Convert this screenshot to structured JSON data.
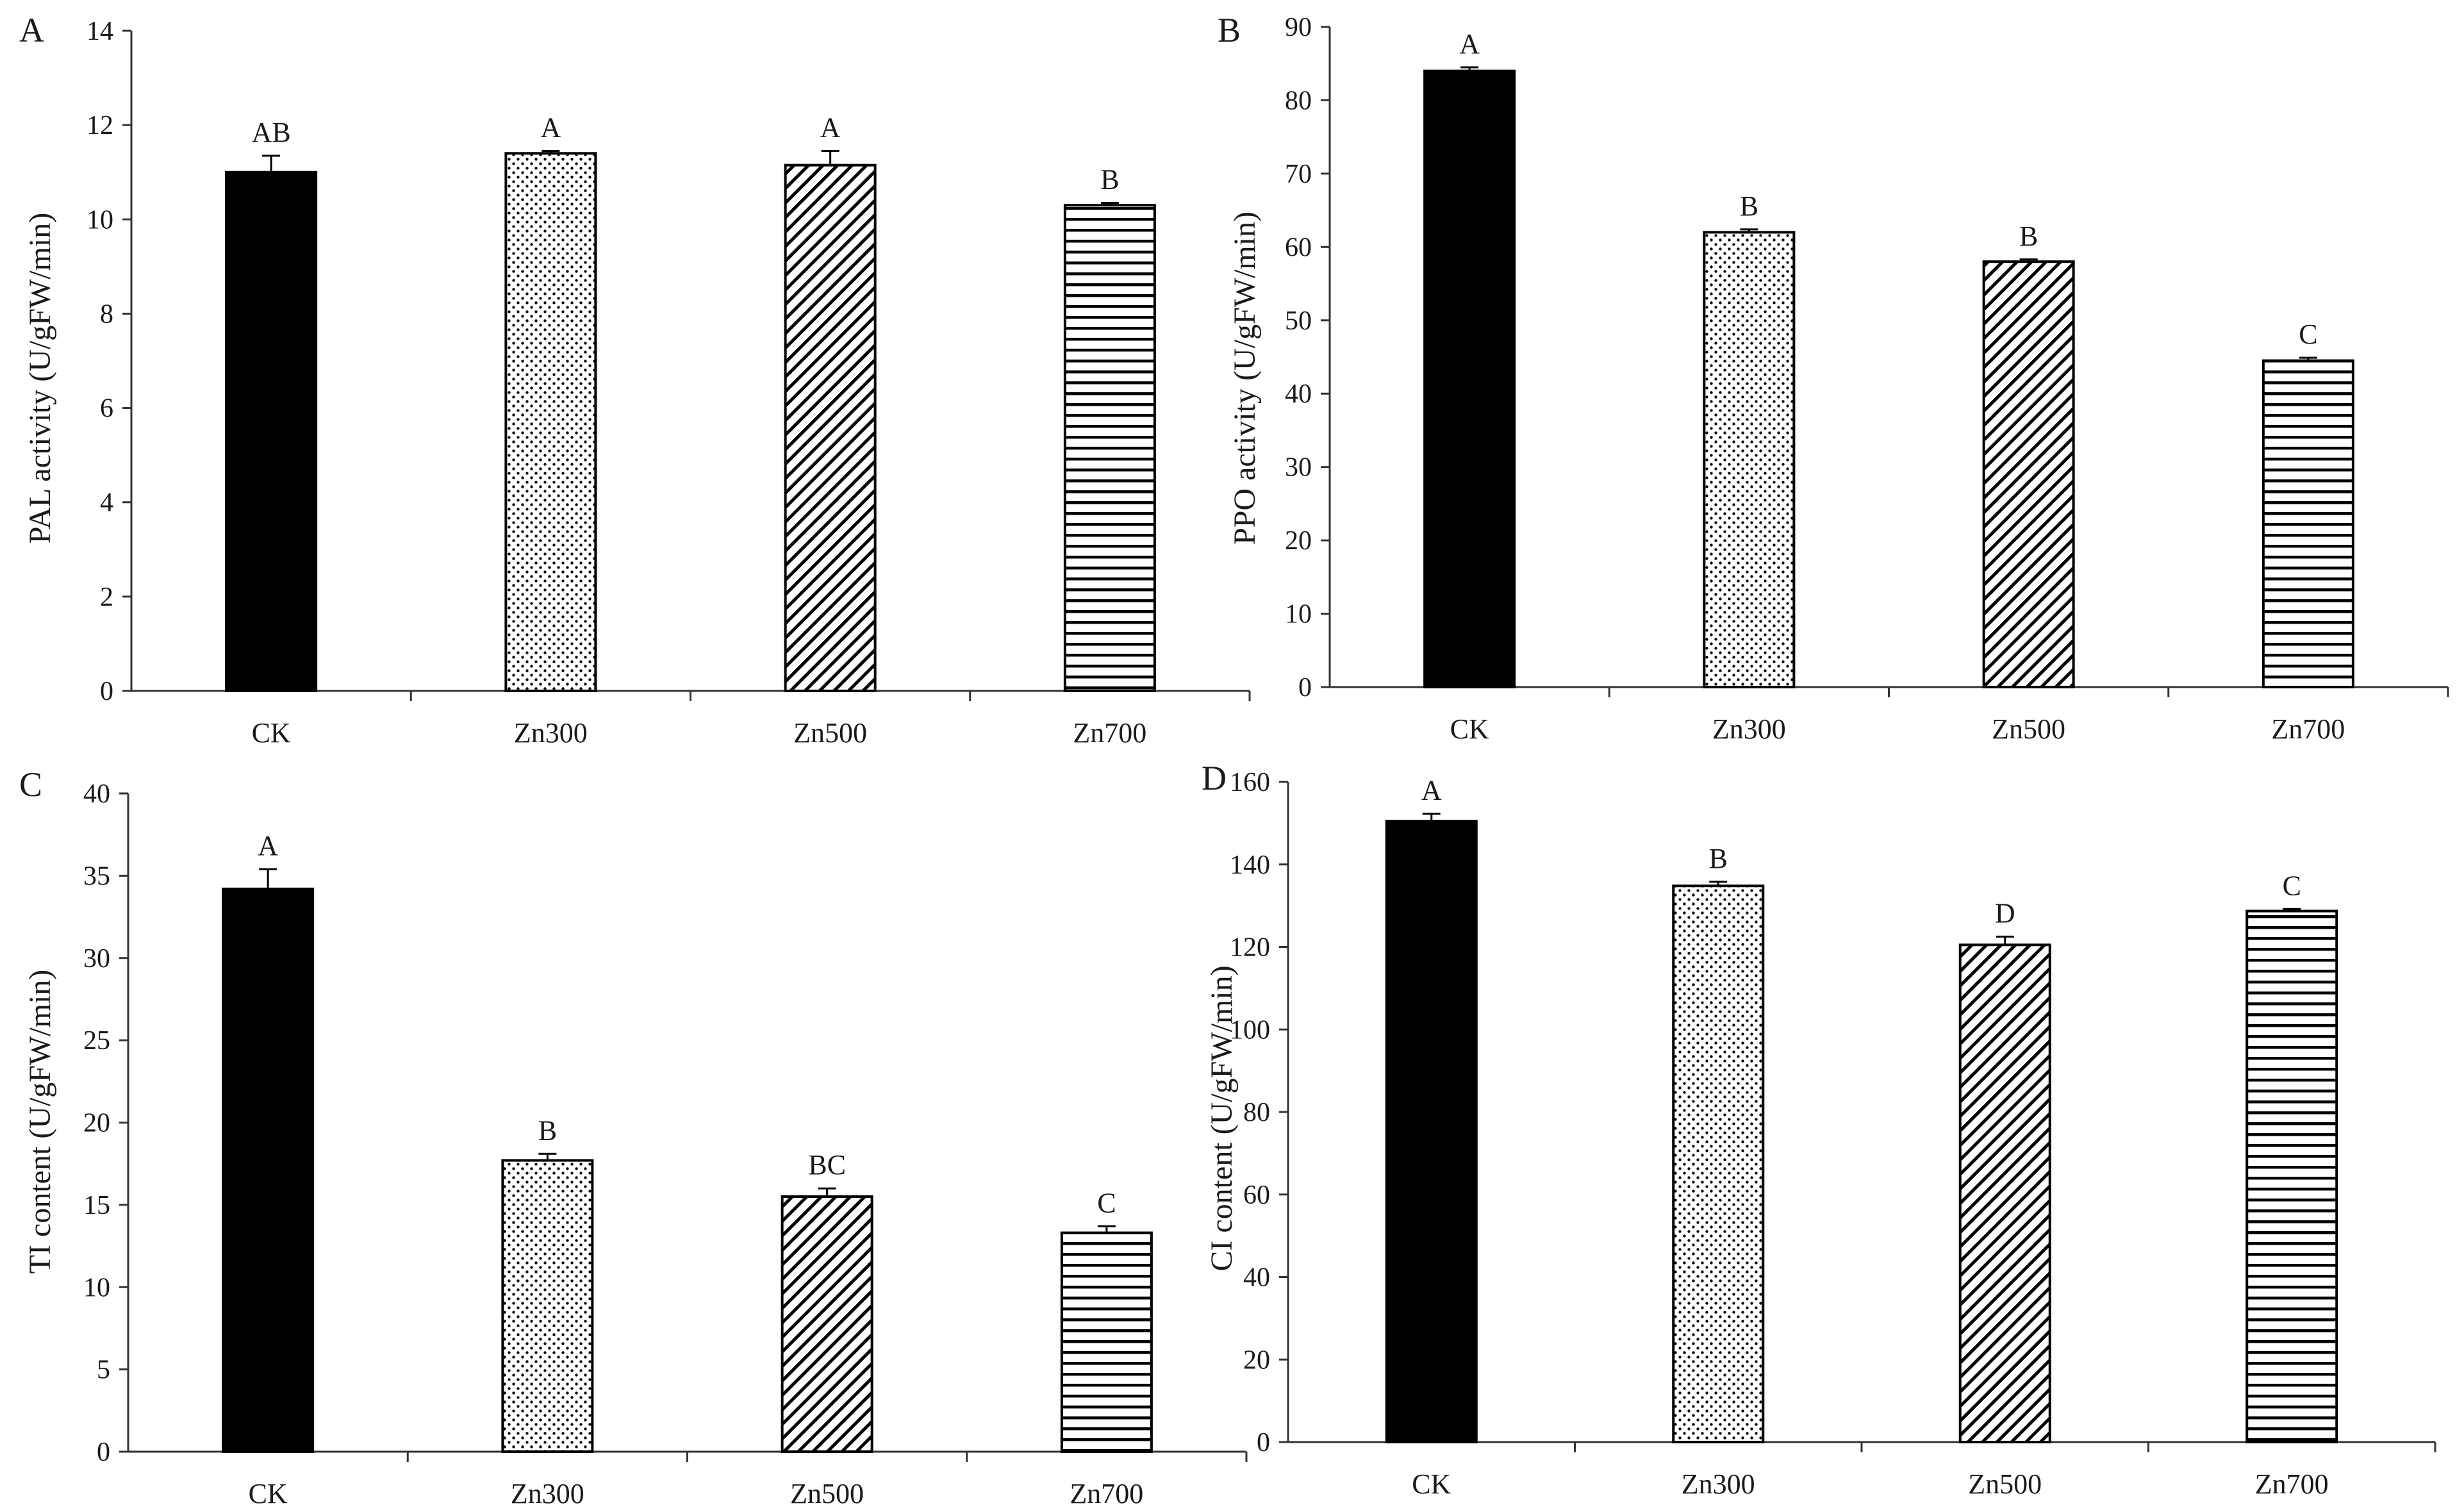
{
  "figure_title": "",
  "chart_data": [
    {
      "type": "bar",
      "panel": "A",
      "ylabel": "PAL activity (U/gFW/min)",
      "xlabel": "",
      "categories": [
        "CK",
        "Zn300",
        "Zn500",
        "Zn700"
      ],
      "values": [
        11.0,
        11.4,
        11.15,
        10.3
      ],
      "errors": [
        0.35,
        0.05,
        0.3,
        0.05
      ],
      "significance": [
        "AB",
        "A",
        "A",
        "B"
      ],
      "patterns": [
        "solid",
        "dots",
        "diagonal",
        "horizontal"
      ],
      "ylim": [
        0,
        14
      ],
      "yticks": [
        0,
        2,
        4,
        6,
        8,
        10,
        12,
        14
      ],
      "grid": false
    },
    {
      "type": "bar",
      "panel": "B",
      "ylabel": "PPO activity (U/gFW/min)",
      "xlabel": "",
      "categories": [
        "CK",
        "Zn300",
        "Zn500",
        "Zn700"
      ],
      "values": [
        84.0,
        62.0,
        58.0,
        44.5
      ],
      "errors": [
        0.5,
        0.4,
        0.3,
        0.4
      ],
      "significance": [
        "A",
        "B",
        "B",
        "C"
      ],
      "patterns": [
        "solid",
        "dots",
        "diagonal",
        "horizontal"
      ],
      "ylim": [
        0,
        90
      ],
      "yticks": [
        0,
        10,
        20,
        30,
        40,
        50,
        60,
        70,
        80,
        90
      ],
      "grid": false
    },
    {
      "type": "bar",
      "panel": "C",
      "ylabel": "TI content (U/gFW/min)",
      "xlabel": "",
      "categories": [
        "CK",
        "Zn300",
        "Zn500",
        "Zn700"
      ],
      "values": [
        34.2,
        17.7,
        15.5,
        13.3
      ],
      "errors": [
        1.2,
        0.4,
        0.5,
        0.4
      ],
      "significance": [
        "A",
        "B",
        "BC",
        "C"
      ],
      "patterns": [
        "solid",
        "dots",
        "diagonal",
        "horizontal"
      ],
      "ylim": [
        0,
        40
      ],
      "yticks": [
        0,
        5,
        10,
        15,
        20,
        25,
        30,
        35,
        40
      ],
      "grid": false
    },
    {
      "type": "bar",
      "panel": "D",
      "ylabel": "CI content (U/gFW/min)",
      "xlabel": "",
      "categories": [
        "CK",
        "Zn300",
        "Zn500",
        "Zn700"
      ],
      "values": [
        150.5,
        134.8,
        120.5,
        128.7
      ],
      "errors": [
        1.8,
        1.0,
        2.0,
        0.5
      ],
      "significance": [
        "A",
        "B",
        "D",
        "C"
      ],
      "patterns": [
        "solid",
        "dots",
        "diagonal",
        "horizontal"
      ],
      "ylim": [
        0,
        160
      ],
      "yticks": [
        0,
        20,
        40,
        60,
        80,
        100,
        120,
        140,
        160
      ],
      "grid": false
    }
  ]
}
